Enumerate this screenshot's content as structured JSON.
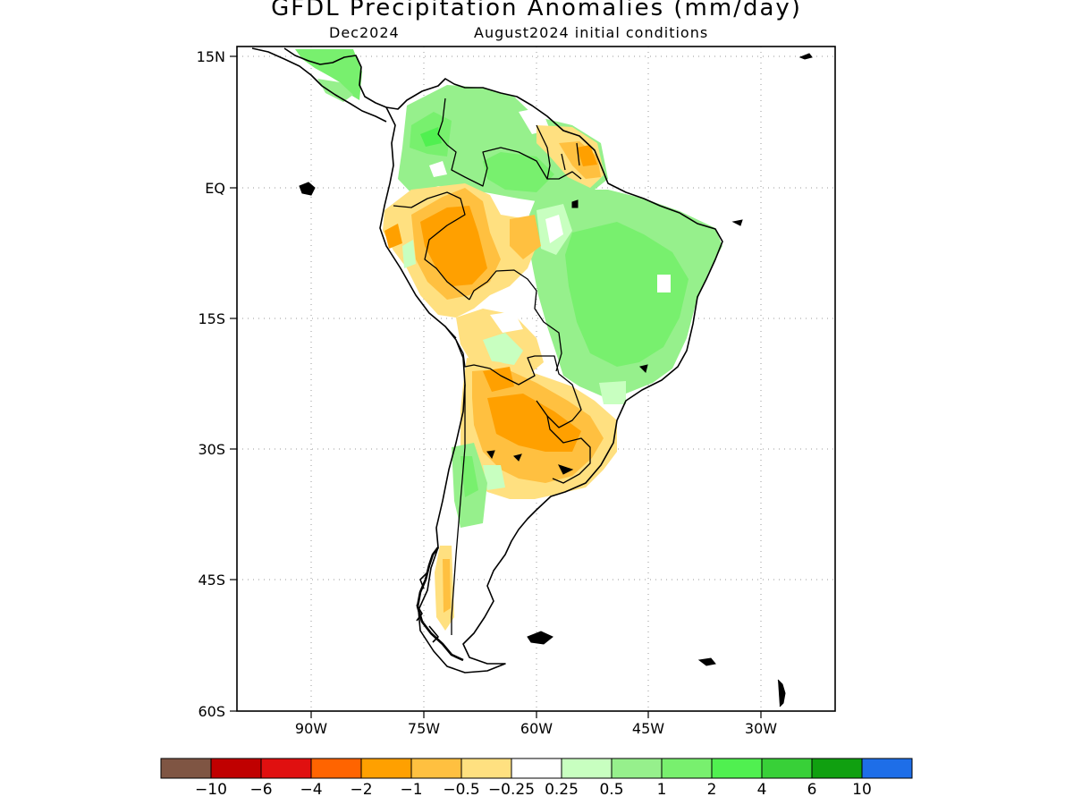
{
  "title": "GFDL Precipitation Anomalies (mm/day)",
  "subtitle_left": "Dec2024",
  "subtitle_right": "August2024 initial conditions",
  "map": {
    "lat_labels": [
      "15N",
      "EQ",
      "15S",
      "30S",
      "45S",
      "60S"
    ],
    "lon_labels": [
      "90W",
      "75W",
      "60W",
      "45W",
      "30W"
    ],
    "extent": {
      "lon_min": -100,
      "lon_max": -20,
      "lat_min": -60,
      "lat_max": 16
    },
    "grid": "dotted"
  },
  "colorbar": {
    "colors": [
      "#7f5543",
      "#c00000",
      "#e01010",
      "#ff6400",
      "#ffa000",
      "#ffc040",
      "#ffe080",
      "#ffffff",
      "#c8ffc0",
      "#96f08c",
      "#78f06e",
      "#50f050",
      "#38d038",
      "#10a010",
      "#1e6ee8"
    ],
    "labels": [
      "−10",
      "−6",
      "−4",
      "−2",
      "−1",
      "−0.5",
      "−0.25",
      "0.25",
      "0.5",
      "1",
      "2",
      "4",
      "6",
      "10"
    ]
  }
}
